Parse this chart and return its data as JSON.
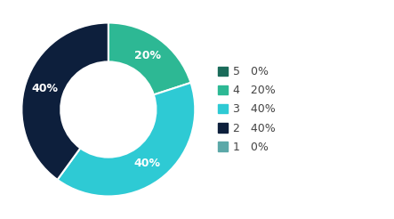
{
  "labels": [
    "5",
    "4",
    "3",
    "2",
    "1"
  ],
  "values": [
    0,
    20,
    40,
    40,
    0
  ],
  "colors": [
    "#1a6b5a",
    "#2db894",
    "#2ecad4",
    "#0d1f3c",
    "#5ba8a8"
  ],
  "legend_labels": [
    "5   0%",
    "4   20%",
    "3   40%",
    "2   40%",
    "1   0%"
  ],
  "text_color": "#ffffff",
  "background_color": "#ffffff",
  "wedge_text_fontsize": 9,
  "legend_fontsize": 9,
  "donut_width": 0.45
}
